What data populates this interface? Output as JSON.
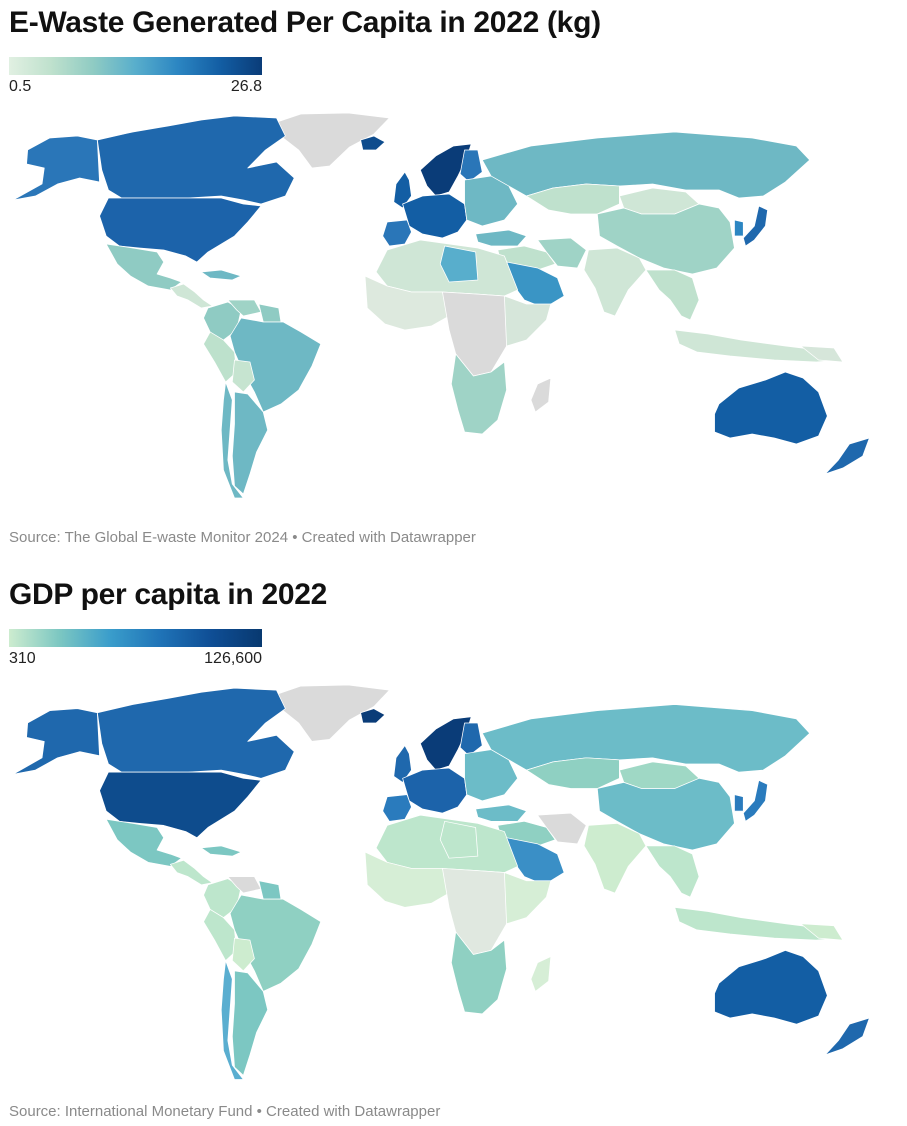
{
  "maps": [
    {
      "title": "E-Waste Generated Per Capita in 2022 (kg)",
      "legend": {
        "min": "0.5",
        "max": "26.8"
      },
      "source": "Source: The Global E-waste Monitor 2024 • Created with Datawrapper",
      "colors": {
        "greenland": "#dadada",
        "canada": "#1f68ad",
        "usa": "#1c63aa",
        "alaska": "#2a76b8",
        "mexico": "#8fcbc3",
        "central_america": "#cfe6d6",
        "caribbean": "#6eb8c4",
        "colombia": "#8fcbc3",
        "venezuela": "#9fd3c6",
        "guianas": "#8fcbc3",
        "brazil": "#6eb8c4",
        "peru": "#bde1cc",
        "bolivia": "#c6e4d0",
        "chile": "#6eb8c4",
        "argentina": "#6eb8c4",
        "iceland": "#0e4c8d",
        "uk": "#135ea4",
        "scandinavia": "#0a3c78",
        "finland": "#2a76b8",
        "w_europe": "#135ea4",
        "iberia": "#2a76b8",
        "e_europe": "#6eb8c4",
        "russia": "#6eb8c4",
        "kazakhstan": "#bfe1cd",
        "mongolia": "#cfe6d6",
        "china": "#9fd3c6",
        "japan": "#1f68ad",
        "korea": "#2c86c2",
        "middle_east": "#bfe1cd",
        "saudi": "#3a95c5",
        "turkey": "#6eb8c4",
        "iran": "#9fd3c6",
        "india": "#cfe6d6",
        "se_asia": "#bfe1cd",
        "indonesia": "#cfe6d6",
        "n_africa": "#cfe6d6",
        "libya": "#58aecc",
        "w_africa": "#dde9de",
        "central_africa": "#dadada",
        "e_africa": "#d6e6da",
        "s_africa": "#9fd3c6",
        "madagascar": "#dadada",
        "australia": "#135ea4",
        "nz": "#1f68ad",
        "png": "#d6e6da"
      }
    },
    {
      "title": "GDP per capita in 2022",
      "legend": {
        "min": "310",
        "max": "126,600"
      },
      "source": "Source: International Monetary Fund • Created with Datawrapper",
      "colors": {
        "greenland": "#dadada",
        "canada": "#1f68ad",
        "usa": "#0e4c8d",
        "alaska": "#1f68ad",
        "mexico": "#7cc7c2",
        "central_america": "#bde6cc",
        "caribbean": "#7cc7c2",
        "colombia": "#bde6cc",
        "venezuela": "#dadada",
        "guianas": "#7cc7c2",
        "brazil": "#8fd0c2",
        "peru": "#bde6cc",
        "bolivia": "#cdeccf",
        "chile": "#5aaed0",
        "argentina": "#7cc7c2",
        "iceland": "#0a3c78",
        "uk": "#1f68ad",
        "scandinavia": "#0a3c78",
        "finland": "#1f68ad",
        "w_europe": "#1c63aa",
        "iberia": "#2a7bbd",
        "e_europe": "#6cbcc8",
        "russia": "#6cbcc8",
        "kazakhstan": "#8fd0c2",
        "mongolia": "#9fd8c5",
        "china": "#6cbcc8",
        "japan": "#2a7bbd",
        "korea": "#2a7bbd",
        "middle_east": "#8fd0c2",
        "saudi": "#3a8fc6",
        "turkey": "#6cbcc8",
        "iran": "#dadada",
        "india": "#cdeccf",
        "se_asia": "#bde6cc",
        "indonesia": "#bde6cc",
        "n_africa": "#bde6cc",
        "libya": "#bde6cc",
        "w_africa": "#d6eed6",
        "central_africa": "#e0e8e0",
        "e_africa": "#d6eed6",
        "s_africa": "#8fd0c2",
        "madagascar": "#d6eed6",
        "australia": "#135ea4",
        "nz": "#1f68ad",
        "png": "#cdeccf"
      }
    }
  ]
}
